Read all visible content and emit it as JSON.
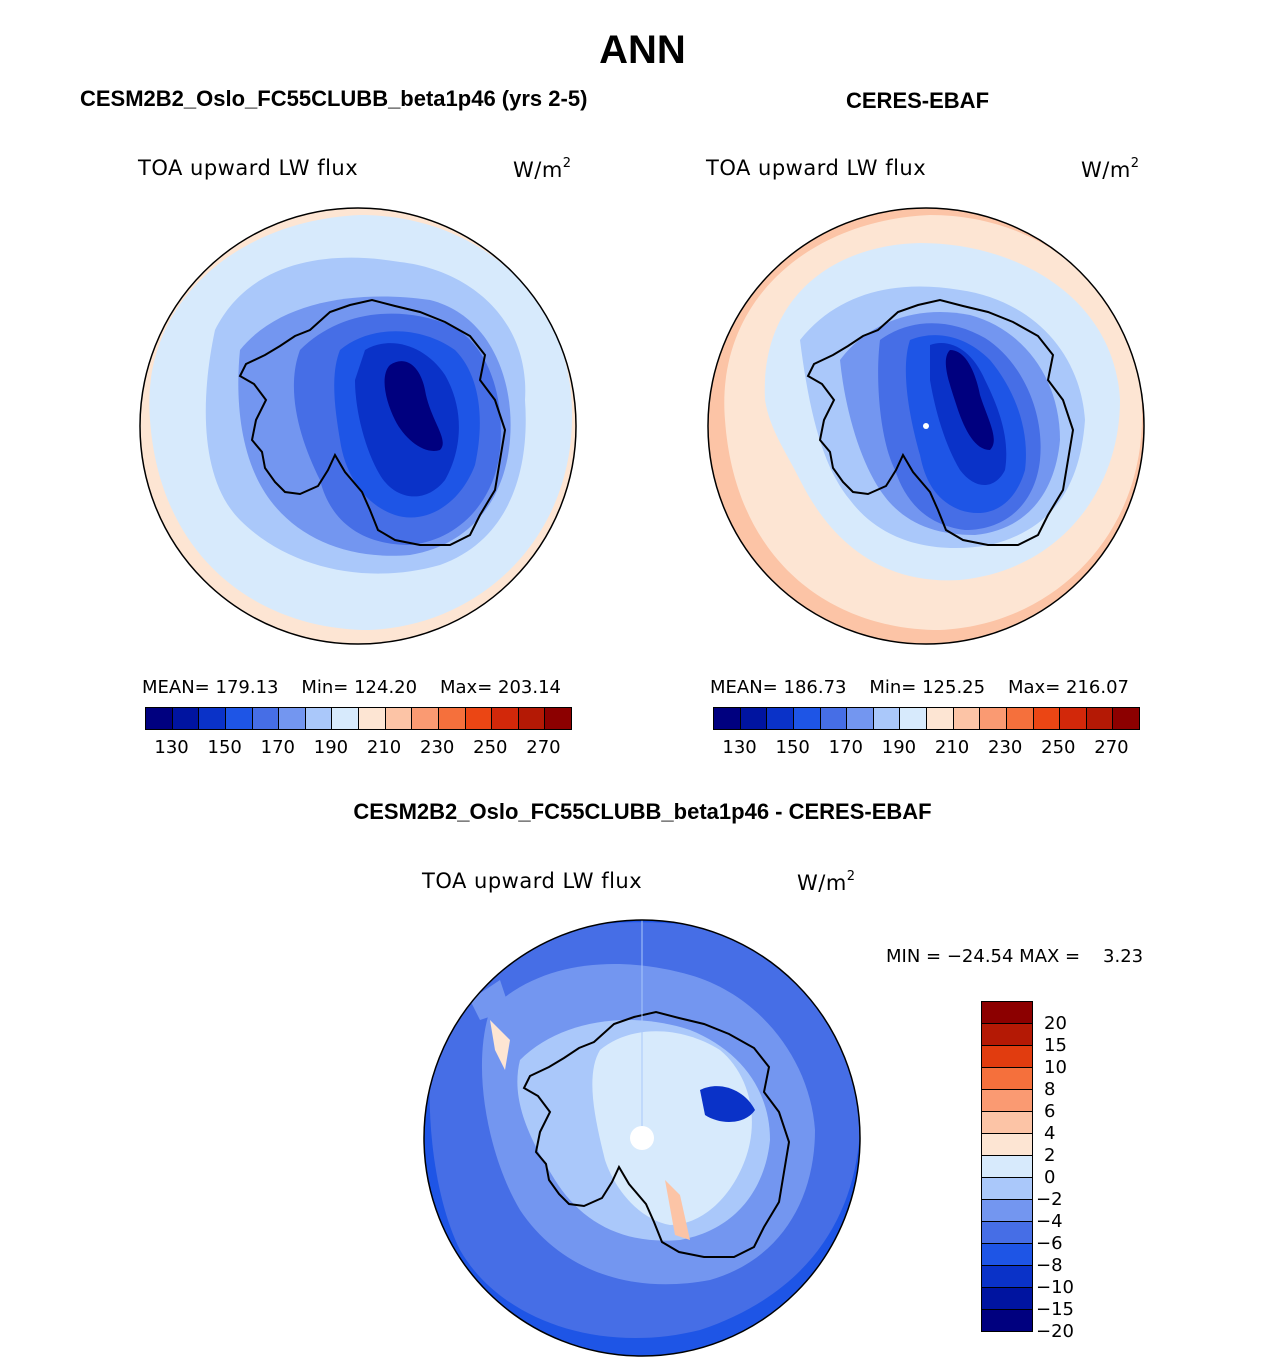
{
  "title": "ANN",
  "panels": {
    "model": {
      "title": "CESM2B2_Oslo_FC55CLUBB_beta1p46 (yrs 2-5)",
      "variable": "TOA upward LW flux",
      "units": "W/m",
      "units_sup": "2",
      "mean": "MEAN= 179.13",
      "min": "Min= 124.20",
      "max": "Max= 203.14"
    },
    "obs": {
      "title": "CERES-EBAF",
      "variable": "TOA upward LW flux",
      "units": "W/m",
      "units_sup": "2",
      "mean": "MEAN= 186.73",
      "min": "Min= 125.25",
      "max": "Max= 216.07"
    },
    "diff": {
      "title": "CESM2B2_Oslo_FC55CLUBB_beta1p46 - CERES-EBAF",
      "variable": "TOA upward LW flux",
      "units": "W/m",
      "units_sup": "2",
      "minmax": "MIN = −24.54 MAX =    3.23"
    }
  },
  "colorbar_abs": {
    "colors": [
      "#00007f",
      "#0014a0",
      "#0a32c8",
      "#1e55e6",
      "#466ee6",
      "#7396f0",
      "#aac8fa",
      "#d7eafc",
      "#fde5d3",
      "#fcc4a6",
      "#fa9a72",
      "#f5703c",
      "#eb4614",
      "#d2280a",
      "#b41905",
      "#8c0000"
    ],
    "labels": [
      "130",
      "150",
      "170",
      "190",
      "210",
      "230",
      "250",
      "270"
    ]
  },
  "colorbar_diff": {
    "colors": [
      "#8c0000",
      "#b41905",
      "#e13c0f",
      "#f5703c",
      "#fa9a72",
      "#fcc4a6",
      "#fde5d3",
      "#d7eafc",
      "#aac8fa",
      "#7396f0",
      "#466ee6",
      "#1e55e6",
      "#0a32c8",
      "#0014a0",
      "#00007f"
    ],
    "labels": [
      "20",
      "15",
      "10",
      "8",
      "6",
      "4",
      "2",
      "0",
      "−2",
      "−4",
      "−6",
      "−8",
      "−10",
      "−15",
      "−20"
    ]
  }
}
